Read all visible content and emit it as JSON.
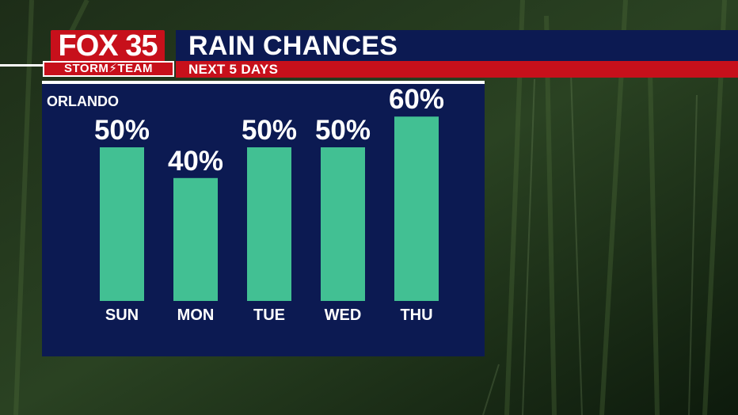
{
  "branding": {
    "station": "FOX 35",
    "team": "STORM⚡TEAM"
  },
  "header": {
    "title": "RAIN CHANCES",
    "subtitle": "NEXT 5 DAYS"
  },
  "panel": {
    "location": "ORLANDO"
  },
  "colors": {
    "bar": "#42c093",
    "panel": "#0c1a52",
    "accent": "#c7101b",
    "text": "#ffffff"
  },
  "chart_data": {
    "type": "bar",
    "title": "RAIN CHANCES",
    "subtitle": "NEXT 5 DAYS",
    "categories": [
      "SUN",
      "MON",
      "TUE",
      "WED",
      "THU"
    ],
    "values": [
      50,
      40,
      50,
      50,
      60
    ],
    "value_labels": [
      "50%",
      "40%",
      "50%",
      "50%",
      "60%"
    ],
    "ylim": [
      0,
      100
    ],
    "grid": false,
    "legend": "none"
  }
}
